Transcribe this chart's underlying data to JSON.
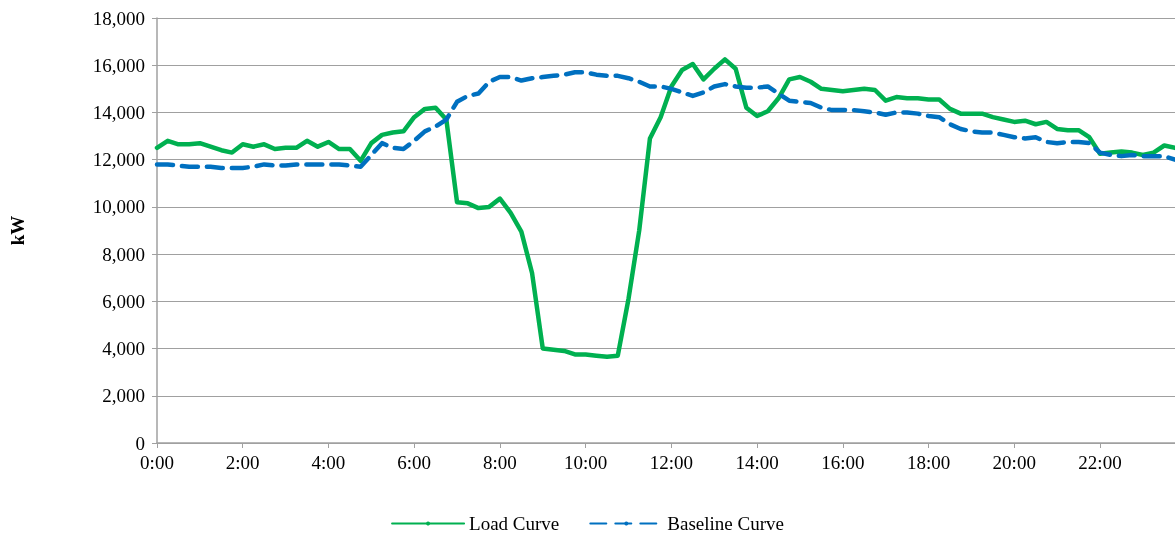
{
  "chart_data": {
    "type": "line",
    "ylabel": "kW",
    "x": [
      0,
      0.25,
      0.5,
      0.75,
      1,
      1.25,
      1.5,
      1.75,
      2,
      2.25,
      2.5,
      2.75,
      3,
      3.25,
      3.5,
      3.75,
      4,
      4.25,
      4.5,
      4.75,
      5,
      5.25,
      5.5,
      5.75,
      6,
      6.25,
      6.5,
      6.75,
      7,
      7.25,
      7.5,
      7.75,
      8,
      8.25,
      8.5,
      8.75,
      9,
      9.25,
      9.5,
      9.75,
      10,
      10.25,
      10.5,
      10.75,
      11,
      11.25,
      11.5,
      11.75,
      12,
      12.25,
      12.5,
      12.75,
      13,
      13.25,
      13.5,
      13.75,
      14,
      14.25,
      14.5,
      14.75,
      15,
      15.25,
      15.5,
      15.75,
      16,
      16.25,
      16.5,
      16.75,
      17,
      17.25,
      17.5,
      17.75,
      18,
      18.25,
      18.5,
      18.75,
      19,
      19.25,
      19.5,
      19.75,
      20,
      20.25,
      20.5,
      20.75,
      21,
      21.25,
      21.5,
      21.75,
      22,
      22.25,
      22.5,
      22.75,
      23,
      23.25,
      23.5,
      23.75
    ],
    "series": [
      {
        "name": "Load Curve",
        "color": "#00b050",
        "line_style": "solid",
        "values": [
          12500,
          12800,
          12650,
          12650,
          12700,
          12550,
          12400,
          12300,
          12650,
          12550,
          12650,
          12450,
          12500,
          12500,
          12800,
          12550,
          12750,
          12450,
          12450,
          11950,
          12700,
          13050,
          13150,
          13200,
          13800,
          14150,
          14200,
          13700,
          10200,
          10150,
          9950,
          10000,
          10350,
          9750,
          8950,
          7200,
          4000,
          3950,
          3900,
          3750,
          3750,
          3700,
          3650,
          3700,
          6100,
          9000,
          12900,
          13800,
          15100,
          15800,
          16050,
          15400,
          15850,
          16250,
          15850,
          14200,
          13850,
          14050,
          14600,
          15400,
          15500,
          15300,
          15000,
          14950,
          14900,
          14950,
          15000,
          14950,
          14500,
          14650,
          14600,
          14600,
          14550,
          14550,
          14150,
          13950,
          13950,
          13950,
          13800,
          13700,
          13600,
          13650,
          13500,
          13600,
          13300,
          13250,
          13250,
          12950,
          12250,
          12300,
          12350,
          12300,
          12200,
          12300,
          12600,
          12500
        ]
      },
      {
        "name": "Baseline Curve",
        "color": "#0070c0",
        "line_style": "dashed",
        "values": [
          11800,
          11800,
          11750,
          11700,
          11700,
          11700,
          11650,
          11650,
          11650,
          11700,
          11800,
          11750,
          11750,
          11800,
          11800,
          11800,
          11800,
          11800,
          11750,
          11700,
          12200,
          12700,
          12500,
          12450,
          12800,
          13200,
          13400,
          13700,
          14450,
          14700,
          14800,
          15300,
          15500,
          15500,
          15350,
          15450,
          15500,
          15550,
          15600,
          15700,
          15700,
          15600,
          15550,
          15550,
          15450,
          15300,
          15100,
          15100,
          15000,
          14850,
          14700,
          14850,
          15100,
          15200,
          15100,
          15050,
          15050,
          15100,
          14800,
          14500,
          14450,
          14400,
          14200,
          14100,
          14100,
          14100,
          14050,
          14000,
          13900,
          14000,
          14000,
          13950,
          13850,
          13800,
          13500,
          13300,
          13200,
          13150,
          13150,
          13050,
          12950,
          12900,
          12950,
          12750,
          12700,
          12750,
          12750,
          12700,
          12300,
          12200,
          12150,
          12200,
          12150,
          12150,
          12150,
          12000
        ]
      }
    ],
    "xlim": [
      0,
      23.75
    ],
    "xticks": [
      {
        "value": 0,
        "label": "0:00"
      },
      {
        "value": 2,
        "label": "2:00"
      },
      {
        "value": 4,
        "label": "4:00"
      },
      {
        "value": 6,
        "label": "6:00"
      },
      {
        "value": 8,
        "label": "8:00"
      },
      {
        "value": 10,
        "label": "10:00"
      },
      {
        "value": 12,
        "label": "12:00"
      },
      {
        "value": 14,
        "label": "14:00"
      },
      {
        "value": 16,
        "label": "16:00"
      },
      {
        "value": 18,
        "label": "18:00"
      },
      {
        "value": 20,
        "label": "20:00"
      },
      {
        "value": 22,
        "label": "22:00"
      }
    ],
    "ylim": [
      0,
      18000
    ],
    "yticks": [
      0,
      {
        "value": 2000,
        "label": "2,000"
      },
      {
        "value": 4000,
        "label": "4,000"
      },
      {
        "value": 6000,
        "label": "6,000"
      },
      {
        "value": 8000,
        "label": "8,000"
      },
      {
        "value": 10000,
        "label": "10,000"
      },
      {
        "value": 12000,
        "label": "12,000"
      },
      {
        "value": 14000,
        "label": "14,000"
      },
      {
        "value": 16000,
        "label": "16,000"
      },
      {
        "value": 18000,
        "label": "18,000"
      }
    ],
    "grid": "y",
    "legend": "bottom",
    "marker": "none"
  }
}
